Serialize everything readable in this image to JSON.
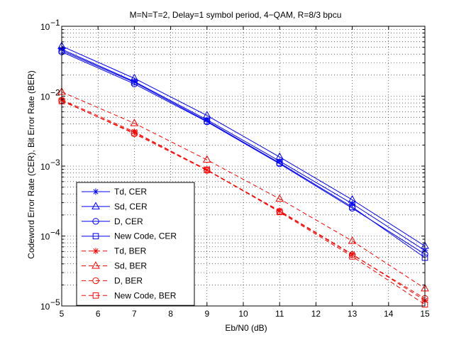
{
  "chart_data": {
    "type": "line",
    "title": "M=N=T=2, Delay=1 symbol period, 4−QAM, R=8/3 bpcu",
    "xlabel": "Eb/N0 (dB)",
    "ylabel": "Codeword Error Rate (CER), Bit Error Rate (BER)",
    "xlim": [
      5,
      15
    ],
    "ylim": [
      1e-05,
      0.1
    ],
    "yscale": "log",
    "grid": true,
    "legend_position": "lower-left",
    "x": [
      5,
      7,
      9,
      11,
      13,
      15
    ],
    "x_tick_labels": [
      "5",
      "6",
      "7",
      "8",
      "9",
      "10",
      "11",
      "12",
      "13",
      "14",
      "15"
    ],
    "y_tick_labels": [
      {
        "base": "10",
        "exp": "−5"
      },
      {
        "base": "10",
        "exp": "−4"
      },
      {
        "base": "10",
        "exp": "−3"
      },
      {
        "base": "10",
        "exp": "−2"
      },
      {
        "base": "10",
        "exp": "−1"
      }
    ],
    "series": [
      {
        "name": "Td, CER",
        "color": "#0000ff",
        "dash": "solid",
        "marker": "star",
        "values": [
          0.047,
          0.0162,
          0.0046,
          0.00118,
          0.00029,
          6.2e-05
        ]
      },
      {
        "name": "Sd, CER",
        "color": "#0000ff",
        "dash": "solid",
        "marker": "triangle",
        "values": [
          0.052,
          0.018,
          0.0053,
          0.00135,
          0.00033,
          7.2e-05
        ]
      },
      {
        "name": "D, CER",
        "color": "#0000ff",
        "dash": "solid",
        "marker": "circle",
        "values": [
          0.043,
          0.015,
          0.0043,
          0.00108,
          0.00025,
          5.5e-05
        ]
      },
      {
        "name": "New Code, CER",
        "color": "#0000ff",
        "dash": "solid",
        "marker": "square",
        "values": [
          0.045,
          0.0158,
          0.0044,
          0.00111,
          0.00026,
          4.9e-05
        ]
      },
      {
        "name": "Td, BER",
        "color": "#ff0000",
        "dash": "dashed",
        "marker": "star",
        "values": [
          0.0089,
          0.0031,
          0.00088,
          0.00023,
          5.5e-05,
          1.2e-05
        ]
      },
      {
        "name": "Sd, BER",
        "color": "#ff0000",
        "dash": "dashed",
        "marker": "triangle",
        "values": [
          0.0115,
          0.0041,
          0.00123,
          0.00034,
          8.5e-05,
          1.78e-05
        ]
      },
      {
        "name": "D, BER",
        "color": "#ff0000",
        "dash": "dashed",
        "marker": "circle",
        "values": [
          0.0087,
          0.0029,
          0.00087,
          0.000225,
          5.4e-05,
          1.28e-05
        ]
      },
      {
        "name": "New Code, BER",
        "color": "#ff0000",
        "dash": "dashed",
        "marker": "square",
        "values": [
          0.0085,
          0.003,
          0.00089,
          0.00022,
          5.1e-05,
          1.05e-05
        ]
      }
    ]
  }
}
